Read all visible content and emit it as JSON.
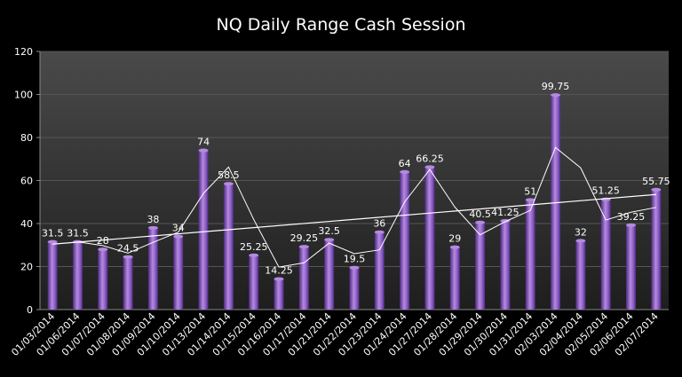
{
  "chart_data": {
    "type": "bar",
    "title": "NQ Daily Range Cash Session",
    "categories": [
      "01/03/2014",
      "01/06/2014",
      "01/07/2014",
      "01/08/2014",
      "01/09/2014",
      "01/10/2014",
      "01/13/2014",
      "01/14/2014",
      "01/15/2014",
      "01/16/2014",
      "01/17/2014",
      "01/21/2014",
      "01/22/2014",
      "01/23/2014",
      "01/24/2014",
      "01/27/2014",
      "01/28/2014",
      "01/29/2014",
      "01/30/2014",
      "01/31/2014",
      "02/03/2014",
      "02/04/2014",
      "02/05/2014",
      "02/06/2014",
      "02/07/2014"
    ],
    "values": [
      31.5,
      31.5,
      28,
      24.5,
      38,
      34,
      74,
      58.5,
      25.25,
      14.25,
      29.25,
      32.5,
      19.5,
      36,
      64,
      66.25,
      29,
      40.5,
      41.25,
      51,
      99.75,
      32,
      51.25,
      39.25,
      55.75
    ],
    "data_labels": [
      "31.5",
      "31.5",
      "28",
      "24.5",
      "38",
      "34",
      "74",
      "58.5",
      "25.25",
      "14.25",
      "29.25",
      "32.5",
      "19.5",
      "36",
      "64",
      "66.25",
      "29",
      "40.5",
      "41.25",
      "51",
      "99.75",
      "32",
      "51.25",
      "39.25",
      "55.75"
    ],
    "moving_average": [
      null,
      31.5,
      29.75,
      26.25,
      31.25,
      36,
      54,
      66.25,
      41.875,
      19.75,
      21.75,
      30.875,
      26,
      27.75,
      50,
      65.125,
      47.625,
      34.75,
      40.875,
      46.125,
      75.375,
      65.875,
      41.625,
      45.25,
      47.5
    ],
    "trendline": [
      30.4,
      53.5
    ],
    "ylim": [
      0,
      120
    ],
    "yticks": [
      "0",
      "20",
      "40",
      "60",
      "80",
      "100",
      "120"
    ],
    "xlabel": "",
    "ylabel": "",
    "grid": true,
    "legend": "none",
    "colors": {
      "background": "#000000",
      "plot_top": "#4a4a4a",
      "plot_bottom": "#1e1e1e",
      "bar_light": "#b58ae0",
      "bar_mid": "#8a5cc4",
      "bar_dark": "#4e2a80",
      "line": "#ffffff",
      "grid": "#555555",
      "text": "#ffffff"
    }
  }
}
